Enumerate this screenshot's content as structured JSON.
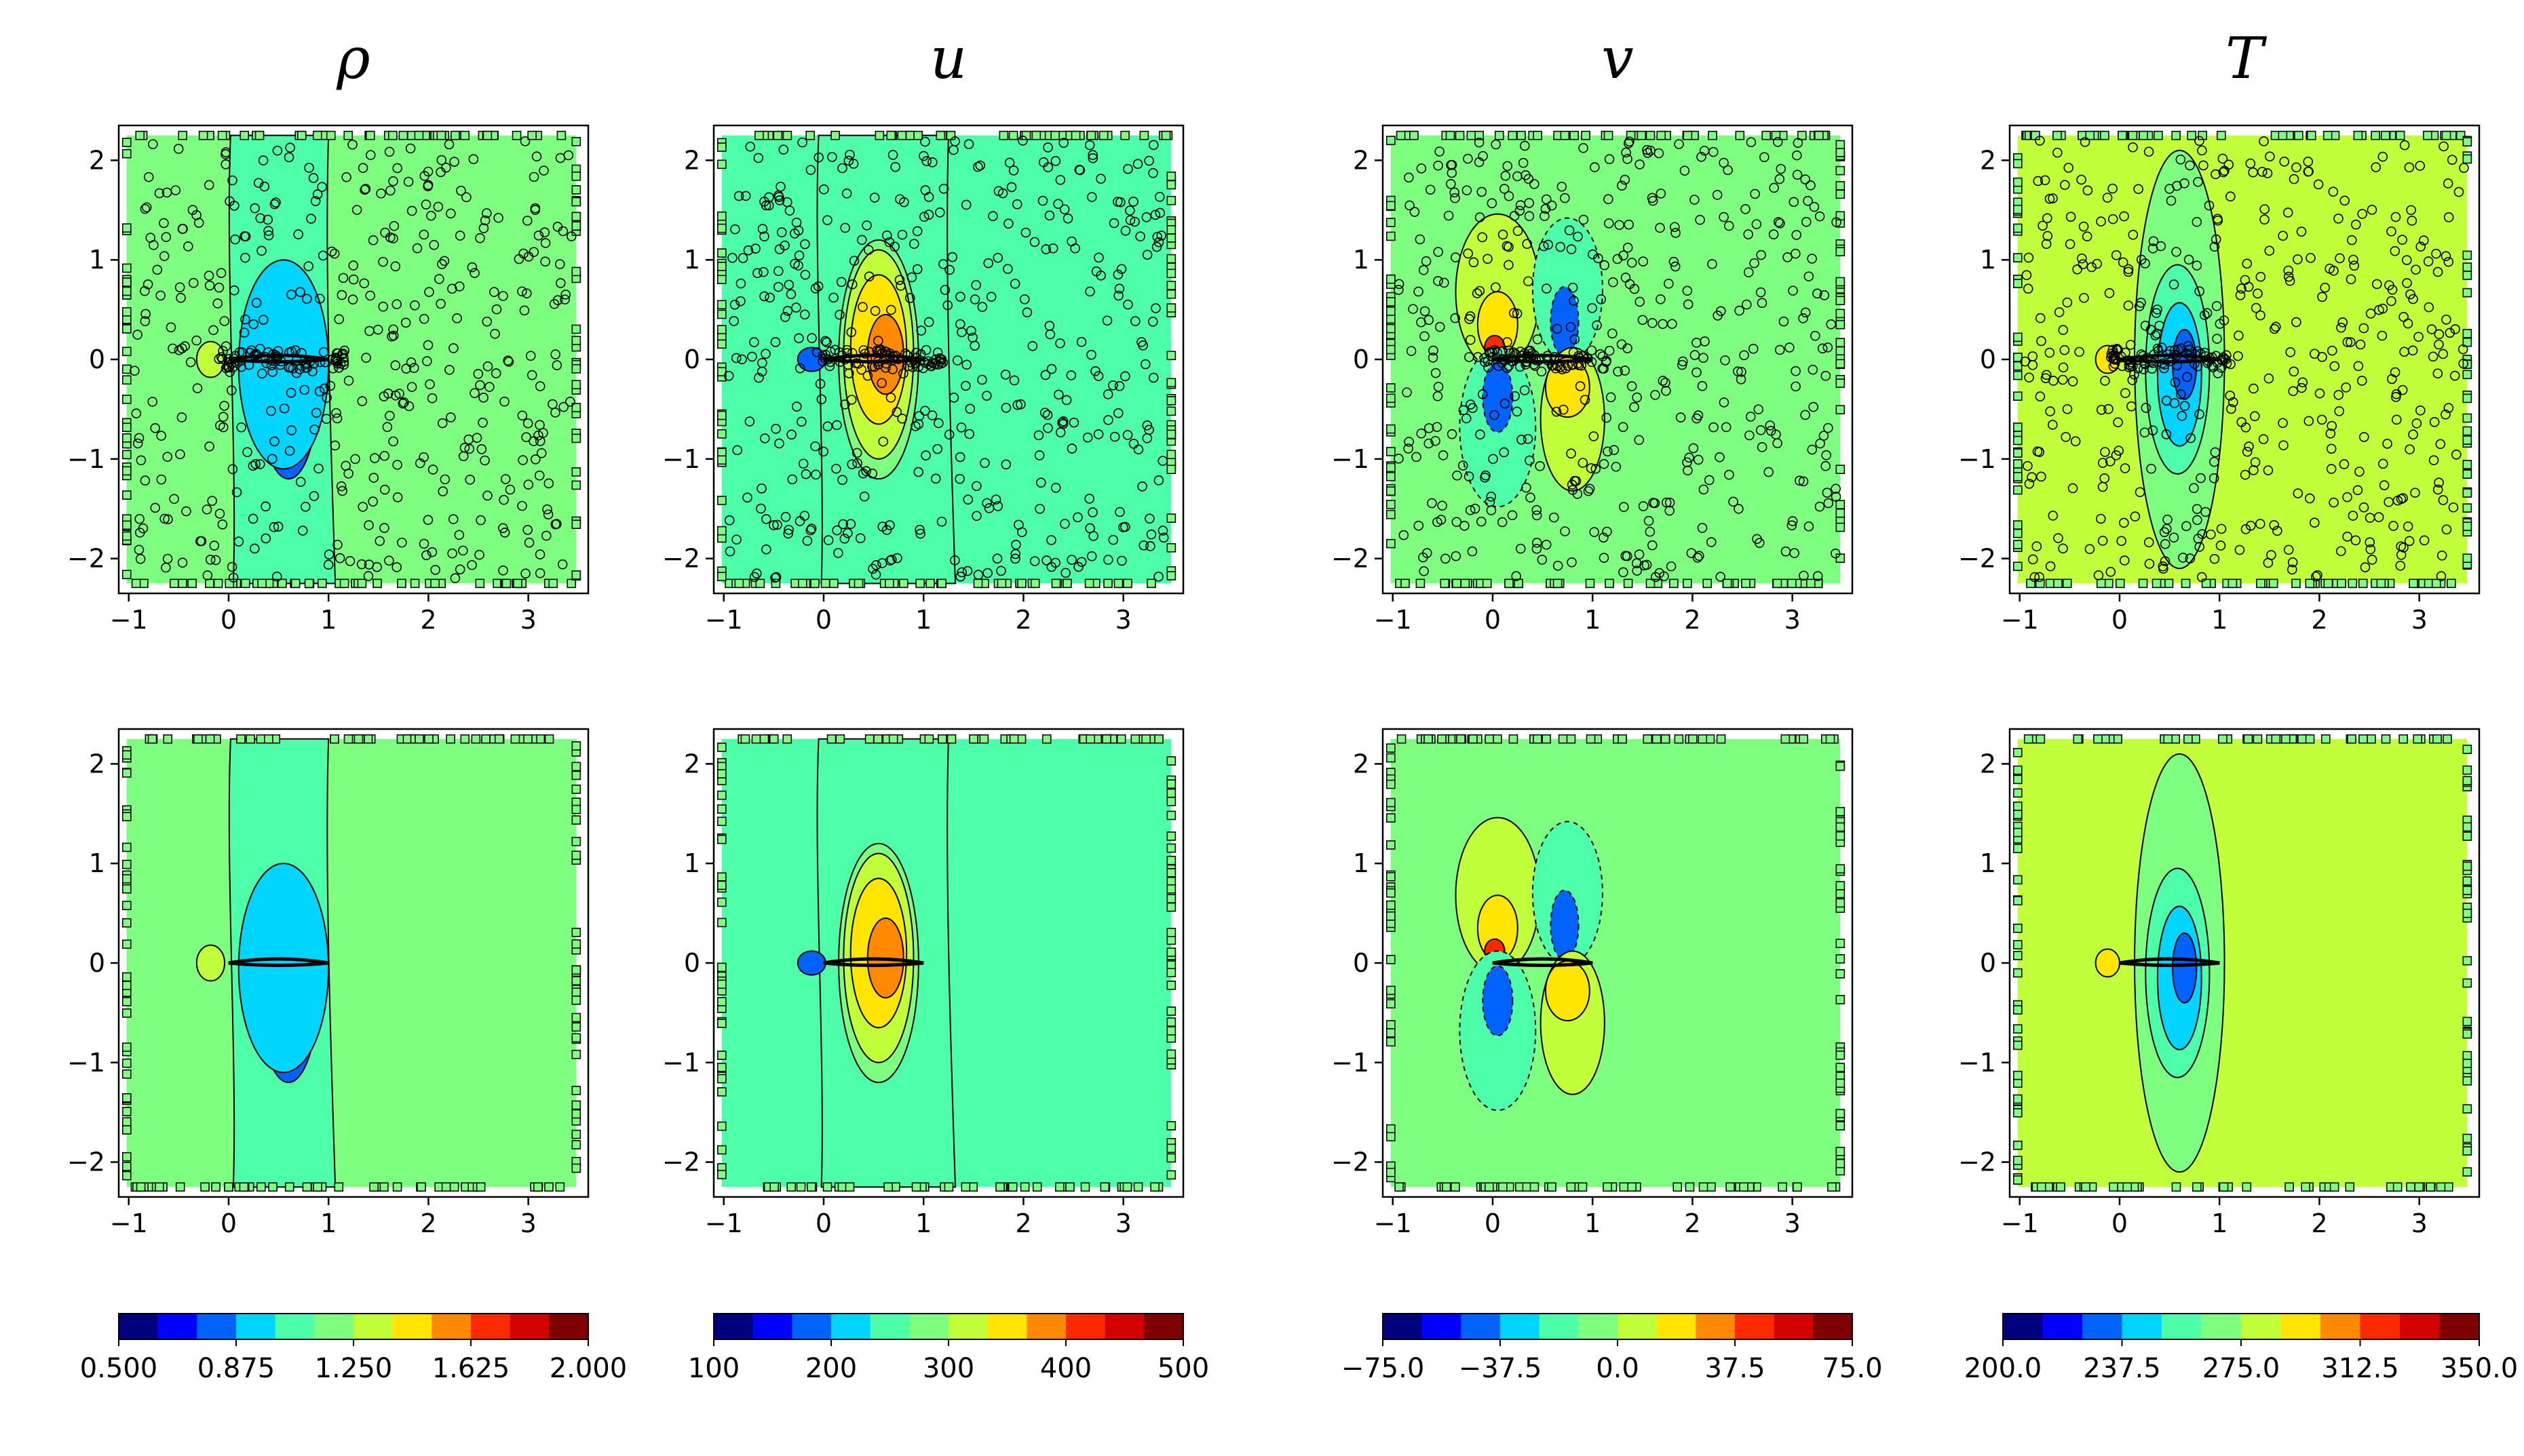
{
  "chart_data": {
    "type": "contour",
    "layout": "2 rows x 4 columns of filled contour plots, one colorbar per column",
    "columns": [
      {
        "title": "ρ",
        "variable": "density",
        "colorbar": {
          "min": 0.5,
          "max": 2.0,
          "levels": 12,
          "ticks": [
            "0.500",
            "0.875",
            "1.250",
            "1.625",
            "2.000"
          ]
        },
        "background_level": 5,
        "features": [
          {
            "x": 0.62,
            "y": -0.3,
            "rx": 0.25,
            "ry": 0.62,
            "level": 1,
            "dash": false
          },
          {
            "x": 0.6,
            "y": -0.25,
            "rx": 0.3,
            "ry": 0.95,
            "level": 2,
            "dash": false
          },
          {
            "x": 0.55,
            "y": -0.05,
            "rx": 0.45,
            "ry": 1.05,
            "level": 3,
            "dash": false
          },
          {
            "x": -0.18,
            "y": 0.0,
            "rx": 0.14,
            "ry": 0.18,
            "level": 6,
            "dash": false
          }
        ],
        "band": {
          "x_left": 0.02,
          "x_right": 1.0,
          "level": 4
        }
      },
      {
        "title": "u",
        "variable": "x-velocity",
        "colorbar": {
          "min": 100,
          "max": 500,
          "levels": 12,
          "ticks": [
            "100",
            "200",
            "300",
            "400",
            "500"
          ]
        },
        "background_level": 4,
        "features": [
          {
            "x": 0.55,
            "y": 0.0,
            "rx": 0.4,
            "ry": 1.2,
            "level": 5,
            "dash": false
          },
          {
            "x": 0.55,
            "y": 0.05,
            "rx": 0.35,
            "ry": 1.05,
            "level": 6,
            "dash": false
          },
          {
            "x": 0.55,
            "y": 0.1,
            "rx": 0.28,
            "ry": 0.75,
            "level": 7,
            "dash": false
          },
          {
            "x": 0.62,
            "y": 0.05,
            "rx": 0.18,
            "ry": 0.4,
            "level": 8,
            "dash": false
          },
          {
            "x": -0.12,
            "y": 0.0,
            "rx": 0.14,
            "ry": 0.12,
            "level": 2,
            "dash": false
          }
        ],
        "band": {
          "x_left": -0.05,
          "x_right": 1.25,
          "level": 4
        }
      },
      {
        "title": "v",
        "variable": "y-velocity",
        "colorbar": {
          "min": -75.0,
          "max": 75.0,
          "levels": 12,
          "ticks": [
            "−75.0",
            "−37.5",
            "0.0",
            "37.5",
            "75.0"
          ]
        },
        "background_level": 5,
        "features": [
          {
            "x": 0.05,
            "y": 0.68,
            "rx": 0.42,
            "ry": 0.78,
            "level": 6,
            "dash": false
          },
          {
            "x": 0.05,
            "y": 0.35,
            "rx": 0.2,
            "ry": 0.33,
            "level": 7,
            "dash": false
          },
          {
            "x": 0.02,
            "y": 0.12,
            "rx": 0.1,
            "ry": 0.12,
            "level": 9,
            "dash": false
          },
          {
            "x": 0.75,
            "y": 0.7,
            "rx": 0.35,
            "ry": 0.72,
            "level": 4,
            "dash": true
          },
          {
            "x": 0.72,
            "y": 0.38,
            "rx": 0.14,
            "ry": 0.35,
            "level": 2,
            "dash": true
          },
          {
            "x": 0.05,
            "y": -0.68,
            "rx": 0.38,
            "ry": 0.8,
            "level": 4,
            "dash": true
          },
          {
            "x": 0.05,
            "y": -0.38,
            "rx": 0.15,
            "ry": 0.35,
            "level": 2,
            "dash": true
          },
          {
            "x": 0.8,
            "y": -0.6,
            "rx": 0.32,
            "ry": 0.72,
            "level": 6,
            "dash": false
          },
          {
            "x": 0.75,
            "y": -0.28,
            "rx": 0.22,
            "ry": 0.3,
            "level": 7,
            "dash": false
          }
        ]
      },
      {
        "title": "T",
        "variable": "temperature",
        "colorbar": {
          "min": 200.0,
          "max": 350.0,
          "levels": 12,
          "ticks": [
            "200.0",
            "237.5",
            "275.0",
            "312.5",
            "350.0"
          ]
        },
        "background_level": 6,
        "features": [
          {
            "x": 0.6,
            "y": 0.0,
            "rx": 0.45,
            "ry": 2.1,
            "level": 5,
            "dash": false
          },
          {
            "x": 0.58,
            "y": -0.1,
            "rx": 0.32,
            "ry": 1.05,
            "level": 4,
            "dash": false
          },
          {
            "x": 0.6,
            "y": -0.15,
            "rx": 0.22,
            "ry": 0.72,
            "level": 3,
            "dash": false
          },
          {
            "x": 0.65,
            "y": -0.05,
            "rx": 0.12,
            "ry": 0.35,
            "level": 2,
            "dash": false
          },
          {
            "x": -0.12,
            "y": 0.0,
            "rx": 0.12,
            "ry": 0.14,
            "level": 7,
            "dash": false
          }
        ]
      }
    ],
    "rows": [
      "with interior sample points (circles) and boundary points (squares)",
      "boundary points (squares) only"
    ],
    "xlim": [
      -1.1,
      3.6
    ],
    "ylim": [
      -2.35,
      2.35
    ],
    "xticks": [
      "−1",
      "0",
      "1",
      "2",
      "3"
    ],
    "yticks": [
      "2",
      "1",
      "0",
      "−1",
      "−2"
    ],
    "airfoil": {
      "x_start": 0.0,
      "x_end": 1.0
    }
  },
  "colors": {
    "jet_levels": [
      "#00007f",
      "#0000ff",
      "#0063ff",
      "#00d5ff",
      "#4effa9",
      "#7fff7f",
      "#c1ff3a",
      "#ffe500",
      "#ff8900",
      "#ff2900",
      "#d30000",
      "#7f0000"
    ]
  }
}
